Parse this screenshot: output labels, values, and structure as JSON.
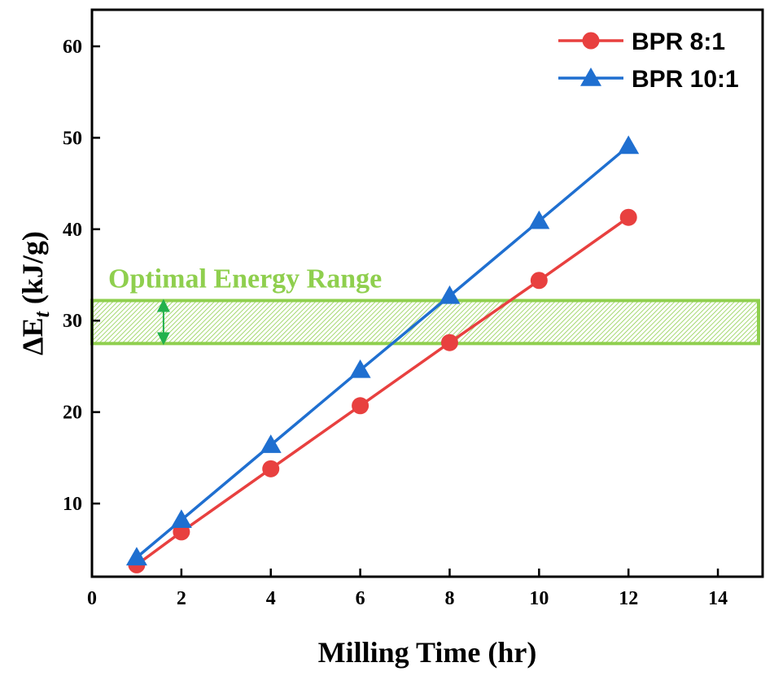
{
  "chart_data": {
    "type": "line",
    "xlabel": "Milling Time (hr)",
    "ylabel_main": "ΔE",
    "ylabel_sub": "t",
    "ylabel_unit": " (kJ/g)",
    "xlim": [
      0,
      15
    ],
    "ylim": [
      2,
      64
    ],
    "xticks": [
      0,
      2,
      4,
      6,
      8,
      10,
      12,
      14
    ],
    "yticks": [
      10,
      20,
      30,
      40,
      50,
      60
    ],
    "grid": false,
    "legend_position": "top-right",
    "series": [
      {
        "name": "BPR 8:1",
        "marker": "circle",
        "color": "#e8403f",
        "x": [
          1,
          2,
          4,
          6,
          8,
          10,
          12
        ],
        "y": [
          3.3,
          6.9,
          13.8,
          20.7,
          27.6,
          34.4,
          41.3
        ]
      },
      {
        "name": "BPR 10:1",
        "marker": "triangle",
        "color": "#1f6fd0",
        "x": [
          1,
          2,
          4,
          6,
          8,
          10,
          12
        ],
        "y": [
          4.1,
          8.2,
          16.4,
          24.6,
          32.7,
          40.9,
          49.1
        ]
      }
    ],
    "band": {
      "label": "Optimal Energy Range",
      "y_range": [
        27.5,
        32.2
      ],
      "color": "#8fcf4e",
      "arrow_color": "#22b14c",
      "arrow_x": 1.6
    }
  }
}
